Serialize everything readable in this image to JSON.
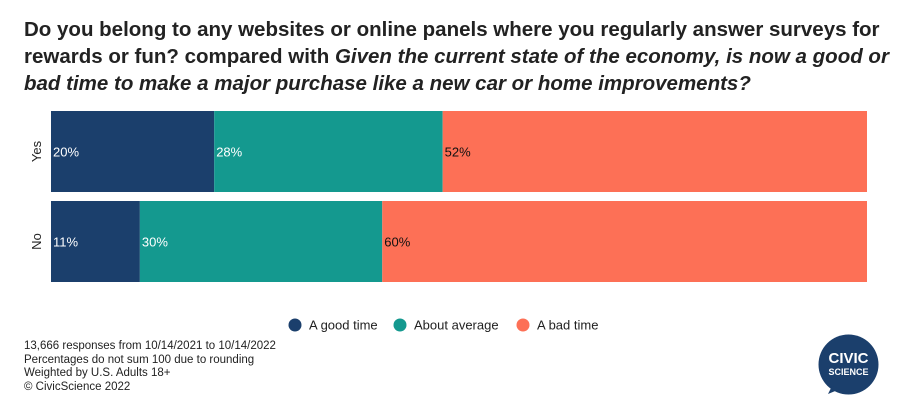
{
  "title": {
    "part1": "Do you belong to any websites or online panels where you regularly answer surveys for rewards or fun? compared with ",
    "part2": "Given the current state of the economy, is now a good or bad time to make a major purchase like a new car or home improvements?"
  },
  "chart_data": {
    "type": "bar",
    "orientation": "horizontal",
    "stacked": true,
    "categories": [
      "Yes",
      "No"
    ],
    "series": [
      {
        "name": "A good time",
        "values": [
          20,
          11
        ],
        "labels": [
          "20%",
          "11%"
        ],
        "color": "#1b3f6c"
      },
      {
        "name": "About average",
        "values": [
          28,
          30
        ],
        "labels": [
          "28%",
          "30%"
        ],
        "color": "#14998f"
      },
      {
        "name": "A bad time",
        "values": [
          52,
          60
        ],
        "labels": [
          "52%",
          "60%"
        ],
        "color": "#fd7056"
      }
    ],
    "legend_position": "bottom",
    "grid": false
  },
  "footnotes": [
    "13,666 responses from 10/14/2021 to 10/14/2022",
    "Percentages do not sum 100 due to rounding",
    "Weighted by U.S. Adults 18+",
    "© CivicScience 2022"
  ],
  "logo": {
    "line1": "CIVIC",
    "line2": "SCIENCE",
    "color": "#1b3f6c"
  }
}
